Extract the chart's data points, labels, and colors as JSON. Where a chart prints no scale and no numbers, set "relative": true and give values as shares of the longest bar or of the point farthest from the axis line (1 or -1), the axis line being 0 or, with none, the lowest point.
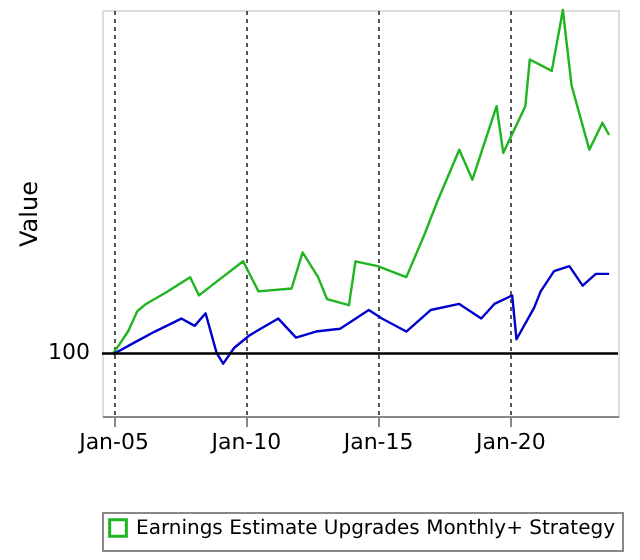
{
  "chart_data": {
    "type": "line",
    "relative": true,
    "ylabel": "Value",
    "grid": "x",
    "legend": "bottom",
    "xlim": [
      "2004-08-01",
      "2024-02-01"
    ],
    "xticks": [
      {
        "value": "2005-01-01",
        "label": "Jan-05"
      },
      {
        "value": "2010-01-01",
        "label": "Jan-10"
      },
      {
        "value": "2015-01-01",
        "label": "Jan-15"
      },
      {
        "value": "2020-01-01",
        "label": "Jan-20"
      }
    ],
    "ref_lines": [
      {
        "axis": "y",
        "value": 0.154,
        "color": "#000000"
      }
    ],
    "annotations": [
      "100"
    ],
    "series": [
      {
        "name": "Earnings Estimate Upgrades Monthly+ Strategy",
        "color": "#1fb51f",
        "x": [
          "2005-01",
          "2005-04",
          "2005-08",
          "2005-12",
          "2006-04",
          "2007-01",
          "2007-12",
          "2008-04",
          "2008-12",
          "2009-12",
          "2010-07",
          "2011-10",
          "2012-03",
          "2012-10",
          "2013-02",
          "2013-12",
          "2014-03",
          "2015-01",
          "2016-02",
          "2016-10",
          "2017-04",
          "2018-02",
          "2018-08",
          "2019-07",
          "2019-10",
          "2020-08",
          "2020-10",
          "2021-08",
          "2022-01",
          "2022-05",
          "2023-01",
          "2023-07",
          "2023-10"
        ],
        "values": [
          0.154,
          0.177,
          0.21,
          0.258,
          0.276,
          0.304,
          0.342,
          0.297,
          0.331,
          0.381,
          0.307,
          0.314,
          0.403,
          0.342,
          0.288,
          0.273,
          0.381,
          0.369,
          0.342,
          0.444,
          0.527,
          0.656,
          0.582,
          0.763,
          0.648,
          0.763,
          0.878,
          0.85,
          1.0,
          0.814,
          0.656,
          0.722,
          0.692
        ]
      },
      {
        "color": "#0000cc",
        "x": [
          "2005-01",
          "2005-10",
          "2006-08",
          "2007-08",
          "2008-02",
          "2008-07",
          "2008-12",
          "2009-03",
          "2009-08",
          "2010-03",
          "2011-04",
          "2011-12",
          "2012-09",
          "2013-08",
          "2014-09",
          "2015-03",
          "2016-02",
          "2017-01",
          "2018-02",
          "2018-12",
          "2019-06",
          "2020-02",
          "2020-04",
          "2020-12",
          "2021-03",
          "2021-09",
          "2022-04",
          "2022-10",
          "2023-04",
          "2023-10"
        ],
        "values": [
          0.152,
          0.179,
          0.208,
          0.24,
          0.222,
          0.253,
          0.155,
          0.129,
          0.168,
          0.199,
          0.24,
          0.193,
          0.208,
          0.215,
          0.261,
          0.24,
          0.208,
          0.261,
          0.276,
          0.24,
          0.276,
          0.297,
          0.189,
          0.267,
          0.307,
          0.357,
          0.369,
          0.321,
          0.35,
          0.35
        ]
      }
    ]
  }
}
